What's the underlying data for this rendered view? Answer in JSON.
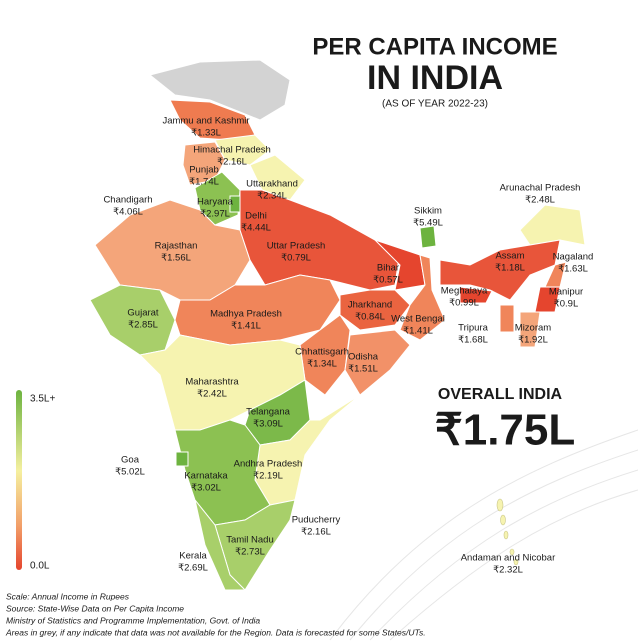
{
  "header": {
    "title_line1": "PER CAPITA INCOME",
    "title_line2": "IN INDIA",
    "subtitle": "(AS OF YEAR 2022-23)"
  },
  "legend": {
    "max": "3.5L+",
    "min": "0.0L"
  },
  "regions": [
    {
      "name": "Jammu and Kashmir",
      "value": "₹1.33L"
    },
    {
      "name": "Himachal Pradesh",
      "value": "₹2.16L"
    },
    {
      "name": "Punjab",
      "value": "₹1.74L"
    },
    {
      "name": "Uttarakhand",
      "value": "₹2.34L"
    },
    {
      "name": "Chandigarh",
      "value": "₹4.06L"
    },
    {
      "name": "Haryana",
      "value": "₹2.97L"
    },
    {
      "name": "Delhi",
      "value": "₹4.44L"
    },
    {
      "name": "Rajasthan",
      "value": "₹1.56L"
    },
    {
      "name": "Uttar Pradesh",
      "value": "₹0.79L"
    },
    {
      "name": "Sikkim",
      "value": "₹5.49L"
    },
    {
      "name": "Arunachal Pradesh",
      "value": "₹2.48L"
    },
    {
      "name": "Assam",
      "value": "₹1.18L"
    },
    {
      "name": "Nagaland",
      "value": "₹1.63L"
    },
    {
      "name": "Bihar",
      "value": "₹0.57L"
    },
    {
      "name": "Meghalaya",
      "value": "₹0.99L"
    },
    {
      "name": "Manipur",
      "value": "₹0.9L"
    },
    {
      "name": "Gujarat",
      "value": "₹2.85L"
    },
    {
      "name": "Madhya Pradesh",
      "value": "₹1.41L"
    },
    {
      "name": "Jharkhand",
      "value": "₹0.84L"
    },
    {
      "name": "West Bengal",
      "value": "₹1.41L"
    },
    {
      "name": "Tripura",
      "value": "₹1.68L"
    },
    {
      "name": "Mizoram",
      "value": "₹1.92L"
    },
    {
      "name": "Chhattisgarh",
      "value": "₹1.34L"
    },
    {
      "name": "Odisha",
      "value": "₹1.51L"
    },
    {
      "name": "Maharashtra",
      "value": "₹2.42L"
    },
    {
      "name": "Telangana",
      "value": "₹3.09L"
    },
    {
      "name": "Goa",
      "value": "₹5.02L"
    },
    {
      "name": "Andhra Pradesh",
      "value": "₹2.19L"
    },
    {
      "name": "Karnataka",
      "value": "₹3.02L"
    },
    {
      "name": "Puducherry",
      "value": "₹2.16L"
    },
    {
      "name": "Tamil Nadu",
      "value": "₹2.73L"
    },
    {
      "name": "Kerala",
      "value": "₹2.69L"
    },
    {
      "name": "Andaman and Nicobar",
      "value": "₹2.32L"
    }
  ],
  "overall": {
    "label": "OVERALL INDIA",
    "value": "₹1.75L"
  },
  "notes": [
    "Scale: Annual Income in Rupees",
    "Source: State-Wise Data on Per Capita Income",
    "Ministry of Statistics and Programme Implementation, Govt. of India",
    "Areas in grey, if any indicate that data was not available for the Region. Data is forecasted for some States/UTs."
  ]
}
